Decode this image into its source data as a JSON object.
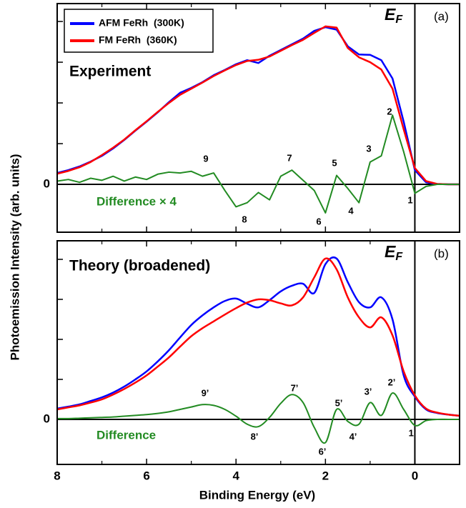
{
  "chart_data": [
    {
      "type": "line",
      "title": "Experiment",
      "panel_label": "(a)",
      "fermi_label": {
        "main": "E",
        "sub": "F"
      },
      "ylabel": "Photoemission Intensity (arb. units)",
      "x": [
        8,
        7.75,
        7.5,
        7.25,
        7,
        6.75,
        6.5,
        6.25,
        6,
        5.75,
        5.5,
        5.25,
        5,
        4.75,
        4.5,
        4.25,
        4,
        3.75,
        3.5,
        3.25,
        3,
        2.75,
        2.5,
        2.25,
        2,
        1.75,
        1.5,
        1.25,
        1,
        0.75,
        0.5,
        0.25,
        0,
        -0.25,
        -0.5,
        -0.75,
        -1
      ],
      "xlim": [
        8,
        -1
      ],
      "xticks": [
        8,
        6,
        4,
        2,
        0
      ],
      "xticks_unlabeled": [
        7,
        5,
        3,
        1,
        -1
      ],
      "xtick_labels": false,
      "ylim": [
        -1.175,
        4.44
      ],
      "yticks": [
        0
      ],
      "yticks_unlabeled": [
        1,
        2,
        3,
        4
      ],
      "fermi_line": 0,
      "zero_line": true,
      "smooth": false,
      "series": [
        {
          "name": "AFM FeRh  (300K)",
          "color": "#0000ff",
          "in_legend": true,
          "values": [
            0.28,
            0.35,
            0.44,
            0.56,
            0.7,
            0.88,
            1.09,
            1.32,
            1.54,
            1.77,
            2.02,
            2.25,
            2.37,
            2.51,
            2.68,
            2.81,
            2.95,
            3.05,
            2.98,
            3.16,
            3.3,
            3.44,
            3.58,
            3.77,
            3.86,
            3.8,
            3.39,
            3.19,
            3.18,
            3.05,
            2.6,
            1.54,
            0.35,
            0.05,
            0.01,
            0.0,
            0.0
          ]
        },
        {
          "name": "FM FeRh  (360K)",
          "color": "#ff0000",
          "in_legend": true,
          "values": [
            0.26,
            0.33,
            0.42,
            0.55,
            0.72,
            0.9,
            1.1,
            1.33,
            1.55,
            1.78,
            2.0,
            2.2,
            2.35,
            2.5,
            2.66,
            2.8,
            2.93,
            3.03,
            3.06,
            3.14,
            3.28,
            3.42,
            3.55,
            3.72,
            3.88,
            3.85,
            3.35,
            3.12,
            3.0,
            2.82,
            2.35,
            1.35,
            0.4,
            0.08,
            0.01,
            0.0,
            0.0
          ]
        },
        {
          "name": "Difference × 4",
          "color": "#228b22",
          "in_legend": false,
          "values": [
            0.08,
            0.12,
            0.05,
            0.15,
            0.1,
            0.2,
            0.08,
            0.18,
            0.12,
            0.25,
            0.3,
            0.28,
            0.32,
            0.2,
            0.28,
            -0.15,
            -0.55,
            -0.45,
            -0.2,
            -0.38,
            0.2,
            0.35,
            0.1,
            -0.15,
            -0.7,
            0.22,
            -0.1,
            -0.45,
            0.55,
            0.7,
            1.7,
            0.8,
            -0.22,
            -0.05,
            0,
            0,
            0
          ]
        }
      ],
      "peak_labels": [
        "9",
        "8",
        "7",
        "6",
        "5",
        "4",
        "3",
        "2",
        "1"
      ]
    },
    {
      "type": "line",
      "title": "Theory (broadened)",
      "panel_label": "(b)",
      "fermi_label": {
        "main": "E",
        "sub": "F"
      },
      "xlabel": "Binding Energy (eV)",
      "x": [
        8,
        7.75,
        7.5,
        7.25,
        7,
        6.75,
        6.5,
        6.25,
        6,
        5.75,
        5.5,
        5.25,
        5,
        4.75,
        4.5,
        4.25,
        4,
        3.75,
        3.5,
        3.25,
        3,
        2.75,
        2.5,
        2.25,
        2,
        1.75,
        1.5,
        1.25,
        1,
        0.75,
        0.5,
        0.25,
        0,
        -0.25,
        -0.5,
        -0.75,
        -1
      ],
      "xlim": [
        8,
        -1
      ],
      "xticks": [
        8,
        6,
        4,
        2,
        0
      ],
      "xticks_unlabeled": [
        7,
        5,
        3,
        1,
        -1
      ],
      "xtick_labels": true,
      "ylim": [
        -1.125,
        4.464
      ],
      "yticks": [
        0
      ],
      "yticks_unlabeled": [
        1,
        2,
        3,
        4
      ],
      "fermi_line": 0,
      "zero_line": true,
      "smooth": true,
      "series": [
        {
          "name": "AFM FeRh  (300K)",
          "color": "#0000ff",
          "in_legend": false,
          "values": [
            0.27,
            0.32,
            0.375,
            0.46,
            0.55,
            0.67,
            0.82,
            1.0,
            1.2,
            1.45,
            1.73,
            2.05,
            2.36,
            2.6,
            2.8,
            2.96,
            3.02,
            2.89,
            2.8,
            2.98,
            3.2,
            3.34,
            3.39,
            3.16,
            3.88,
            4.02,
            3.43,
            2.93,
            2.8,
            3.05,
            2.5,
            1.1,
            0.57,
            0.25,
            0.16,
            0.12,
            0.09
          ]
        },
        {
          "name": "FM FeRh  (360K)",
          "color": "#ff0000",
          "in_legend": false,
          "values": [
            0.25,
            0.3,
            0.35,
            0.42,
            0.5,
            0.62,
            0.76,
            0.92,
            1.1,
            1.32,
            1.55,
            1.82,
            2.08,
            2.28,
            2.45,
            2.62,
            2.78,
            2.92,
            3.0,
            2.98,
            2.9,
            2.85,
            3.05,
            3.55,
            4.02,
            3.75,
            3.05,
            2.55,
            2.3,
            2.55,
            2.1,
            1.2,
            0.6,
            0.27,
            0.17,
            0.12,
            0.09
          ]
        },
        {
          "name": "Difference",
          "color": "#228b22",
          "in_legend": false,
          "values": [
            0.02,
            0.02,
            0.03,
            0.04,
            0.05,
            0.06,
            0.08,
            0.1,
            0.12,
            0.15,
            0.19,
            0.25,
            0.31,
            0.37,
            0.35,
            0.25,
            0.08,
            -0.12,
            -0.18,
            0.05,
            0.4,
            0.62,
            0.42,
            -0.2,
            -0.58,
            0.25,
            -0.05,
            -0.12,
            0.42,
            0.1,
            0.66,
            0.25,
            -0.15,
            -0.03,
            0,
            0,
            0
          ]
        }
      ],
      "peak_labels": [
        "9’",
        "8’",
        "7’",
        "6’",
        "5’",
        "4’",
        "3’",
        "2’",
        "1’"
      ]
    }
  ]
}
